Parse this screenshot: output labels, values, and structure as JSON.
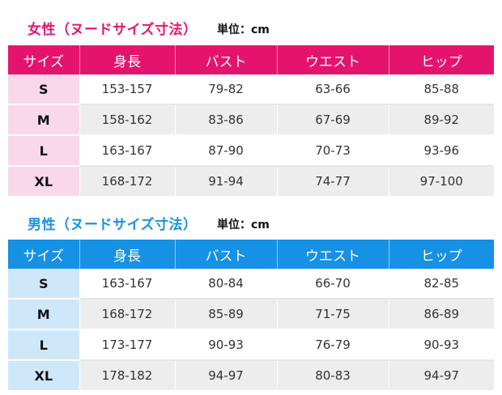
{
  "women": {
    "title": "女性（ヌードサイズ寸法）",
    "unit": "単位：cm",
    "headers": [
      "サイズ",
      "身長",
      "バスト",
      "ウエスト",
      "ヒップ"
    ],
    "rows": [
      [
        "S",
        "153-157",
        "79-82",
        "63-66",
        "85-88"
      ],
      [
        "M",
        "158-162",
        "83-86",
        "67-69",
        "89-92"
      ],
      [
        "L",
        "163-167",
        "87-90",
        "70-73",
        "93-96"
      ],
      [
        "XL",
        "168-172",
        "91-94",
        "74-77",
        "97-100"
      ]
    ]
  },
  "men": {
    "title": "男性（ヌードサイズ寸法）",
    "unit": "単位：cm",
    "headers": [
      "サイズ",
      "身長",
      "バスト",
      "ウエスト",
      "ヒップ"
    ],
    "rows": [
      [
        "S",
        "163-167",
        "80-84",
        "66-70",
        "82-85"
      ],
      [
        "M",
        "168-172",
        "85-89",
        "71-75",
        "86-89"
      ],
      [
        "L",
        "173-177",
        "90-93",
        "76-79",
        "90-93"
      ],
      [
        "XL",
        "178-182",
        "94-97",
        "80-83",
        "94-97"
      ]
    ]
  },
  "colors": {
    "women_accent": "#e4146e",
    "women_size_cell": "#f9d8ea",
    "men_accent": "#1691e3",
    "men_size_cell": "#cfe8f9",
    "stripe": "#ededed"
  }
}
